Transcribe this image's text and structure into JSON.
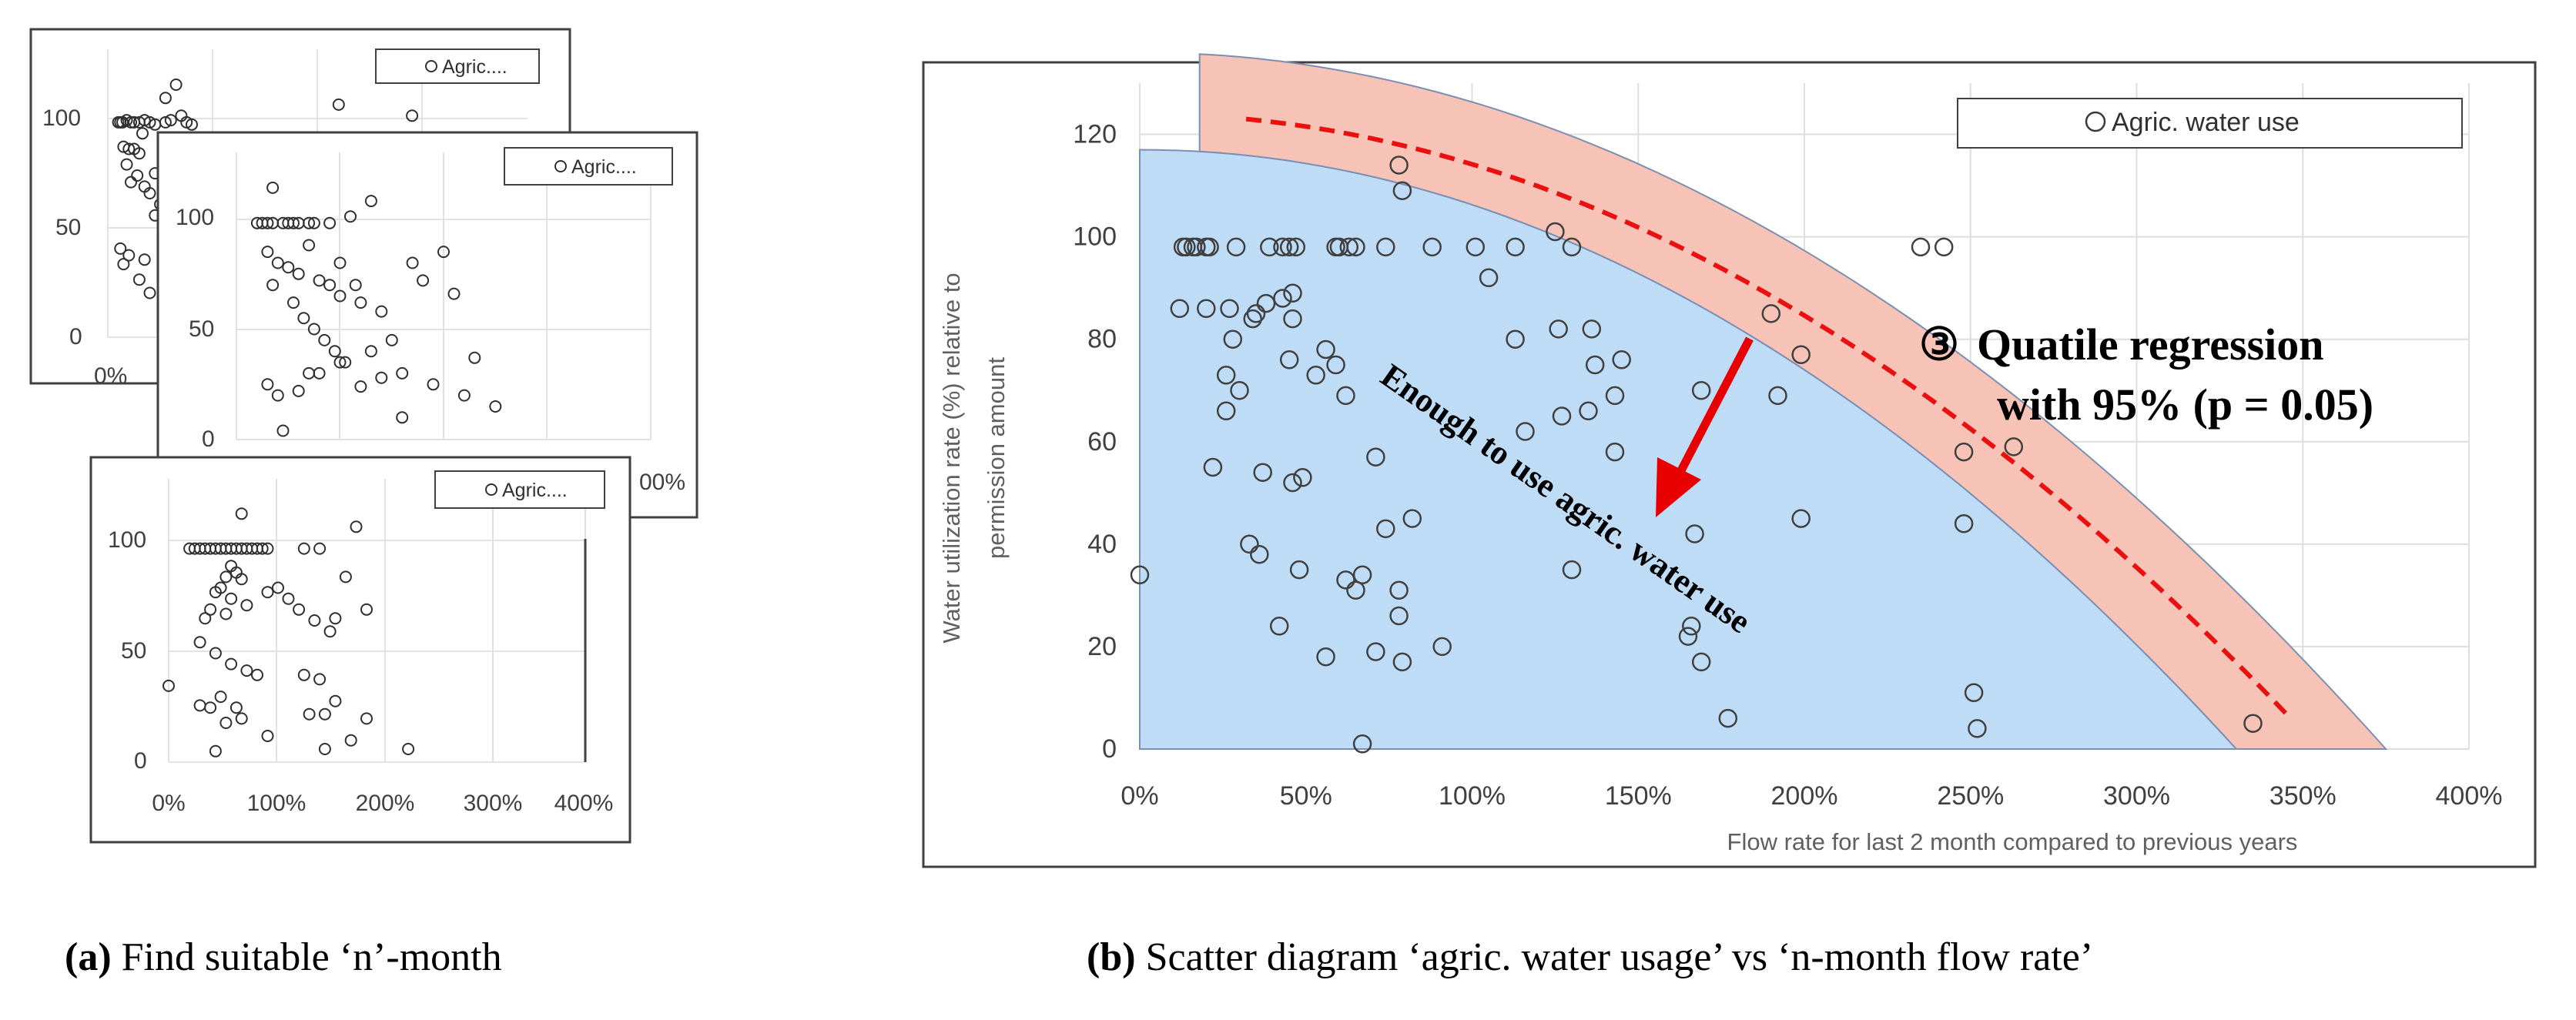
{
  "chart_data": [
    {
      "type": "scatter",
      "panel": "a-1",
      "legend": "Agric....",
      "ylim": [
        0,
        130
      ],
      "xlim": [
        0,
        4
      ],
      "yticks": [
        "0",
        "50",
        "100"
      ],
      "xticks": [
        "0%"
      ],
      "points": [
        [
          0.1,
          97
        ],
        [
          0.12,
          97
        ],
        [
          0.14,
          97
        ],
        [
          0.18,
          98
        ],
        [
          0.22,
          97
        ],
        [
          0.25,
          97
        ],
        [
          0.3,
          97
        ],
        [
          0.35,
          98
        ],
        [
          0.4,
          97
        ],
        [
          0.45,
          96
        ],
        [
          0.55,
          97
        ],
        [
          0.6,
          98
        ],
        [
          0.7,
          100
        ],
        [
          0.75,
          97
        ],
        [
          0.8,
          96
        ],
        [
          0.15,
          86
        ],
        [
          0.2,
          85
        ],
        [
          0.25,
          85
        ],
        [
          0.3,
          83
        ],
        [
          0.18,
          78
        ],
        [
          0.28,
          73
        ],
        [
          0.35,
          68
        ],
        [
          0.4,
          65
        ],
        [
          0.22,
          70
        ],
        [
          0.45,
          74
        ],
        [
          0.33,
          92
        ],
        [
          0.55,
          108
        ],
        [
          0.65,
          114
        ],
        [
          0.12,
          40
        ],
        [
          0.2,
          37
        ],
        [
          0.35,
          35
        ],
        [
          0.3,
          26
        ],
        [
          0.4,
          20
        ],
        [
          0.15,
          33
        ],
        [
          0.45,
          55
        ],
        [
          0.5,
          60
        ],
        [
          2.2,
          105
        ],
        [
          2.9,
          100
        ]
      ]
    },
    {
      "type": "scatter",
      "panel": "a-2",
      "legend": "Agric....",
      "ylim": [
        0,
        130
      ],
      "xlim": [
        0,
        4
      ],
      "yticks": [
        "0",
        "50",
        "100"
      ],
      "xticks": [
        "00%"
      ],
      "points": [
        [
          0.2,
          98
        ],
        [
          0.25,
          98
        ],
        [
          0.3,
          98
        ],
        [
          0.35,
          98
        ],
        [
          0.45,
          98
        ],
        [
          0.5,
          98
        ],
        [
          0.55,
          98
        ],
        [
          0.6,
          98
        ],
        [
          0.7,
          98
        ],
        [
          0.75,
          98
        ],
        [
          0.9,
          98
        ],
        [
          1.1,
          101
        ],
        [
          1.3,
          108
        ],
        [
          0.35,
          114
        ],
        [
          0.3,
          85
        ],
        [
          0.4,
          80
        ],
        [
          0.5,
          78
        ],
        [
          0.6,
          75
        ],
        [
          0.7,
          88
        ],
        [
          0.8,
          72
        ],
        [
          0.9,
          70
        ],
        [
          1.0,
          65
        ],
        [
          1.2,
          62
        ],
        [
          1.4,
          58
        ],
        [
          0.35,
          70
        ],
        [
          0.55,
          62
        ],
        [
          0.65,
          55
        ],
        [
          0.75,
          50
        ],
        [
          0.85,
          45
        ],
        [
          0.95,
          40
        ],
        [
          1.05,
          35
        ],
        [
          1.3,
          40
        ],
        [
          1.5,
          45
        ],
        [
          1.7,
          80
        ],
        [
          1.8,
          72
        ],
        [
          2.0,
          85
        ],
        [
          2.1,
          66
        ],
        [
          1.6,
          30
        ],
        [
          1.9,
          25
        ],
        [
          2.3,
          37
        ],
        [
          2.5,
          15
        ],
        [
          0.3,
          25
        ],
        [
          0.4,
          20
        ],
        [
          0.6,
          22
        ],
        [
          0.8,
          30
        ],
        [
          1.0,
          35
        ],
        [
          1.2,
          24
        ],
        [
          1.4,
          28
        ],
        [
          1.6,
          10
        ],
        [
          0.45,
          4
        ],
        [
          2.2,
          20
        ],
        [
          1.0,
          80
        ],
        [
          1.15,
          70
        ],
        [
          0.7,
          30
        ]
      ]
    },
    {
      "type": "scatter",
      "panel": "a-3",
      "legend": "Agric....",
      "ylim": [
        0,
        130
      ],
      "xlim": [
        0,
        4
      ],
      "yticks": [
        "0",
        "50",
        "100"
      ],
      "xticks": [
        "0%",
        "100%",
        "200%",
        "300%",
        "400%"
      ],
      "points": [
        [
          0.2,
          98
        ],
        [
          0.25,
          98
        ],
        [
          0.3,
          98
        ],
        [
          0.35,
          98
        ],
        [
          0.4,
          98
        ],
        [
          0.45,
          98
        ],
        [
          0.5,
          98
        ],
        [
          0.55,
          98
        ],
        [
          0.6,
          98
        ],
        [
          0.65,
          98
        ],
        [
          0.7,
          98
        ],
        [
          0.75,
          98
        ],
        [
          0.8,
          98
        ],
        [
          0.85,
          98
        ],
        [
          0.9,
          98
        ],
        [
          0.95,
          98
        ],
        [
          1.3,
          98
        ],
        [
          1.45,
          98
        ],
        [
          0.7,
          114
        ],
        [
          0.6,
          90
        ],
        [
          0.65,
          87
        ],
        [
          0.55,
          85
        ],
        [
          0.7,
          84
        ],
        [
          0.5,
          80
        ],
        [
          0.45,
          78
        ],
        [
          0.6,
          75
        ],
        [
          0.75,
          72
        ],
        [
          0.4,
          70
        ],
        [
          0.55,
          68
        ],
        [
          0.35,
          66
        ],
        [
          0.95,
          78
        ],
        [
          1.05,
          80
        ],
        [
          1.15,
          75
        ],
        [
          1.25,
          70
        ],
        [
          1.4,
          65
        ],
        [
          1.55,
          60
        ],
        [
          1.6,
          66
        ],
        [
          1.7,
          85
        ],
        [
          1.8,
          108
        ],
        [
          1.9,
          70
        ],
        [
          0.3,
          55
        ],
        [
          0.45,
          50
        ],
        [
          0.6,
          45
        ],
        [
          0.75,
          42
        ],
        [
          0.85,
          40
        ],
        [
          1.3,
          40
        ],
        [
          1.45,
          38
        ],
        [
          0.5,
          30
        ],
        [
          0.65,
          25
        ],
        [
          0.7,
          20
        ],
        [
          0.4,
          25
        ],
        [
          0.55,
          18
        ],
        [
          1.35,
          22
        ],
        [
          1.5,
          22
        ],
        [
          1.6,
          28
        ],
        [
          1.9,
          20
        ],
        [
          1.75,
          10
        ],
        [
          0.95,
          12
        ],
        [
          0.45,
          5
        ],
        [
          1.5,
          6
        ],
        [
          2.3,
          6
        ],
        [
          0.0,
          35
        ],
        [
          0.3,
          26
        ]
      ]
    },
    {
      "type": "scatter",
      "panel": "b",
      "legend": "Agric. water use",
      "xlabel": "Flow rate for last 2 month compared to previous years",
      "ylabel_line1": "Water utilization rate (%)  relative to",
      "ylabel_line2": "permission amount",
      "xlim": [
        0,
        4
      ],
      "ylim": [
        0,
        130
      ],
      "xticks": [
        "0%",
        "50%",
        "100%",
        "150%",
        "200%",
        "250%",
        "300%",
        "350%",
        "400%"
      ],
      "yticks": [
        "0",
        "20",
        "40",
        "60",
        "80",
        "100",
        "120"
      ],
      "annotations": {
        "regression_circle": "③",
        "regression_line1": "Quatile regression",
        "regression_line2": "with 95% (p = 0.05)",
        "enough_text": "Enough to use agric. water use"
      },
      "regression_curve": {
        "x_start": 0.32,
        "x_end": 3.45,
        "y_at_x0": 124,
        "y_at_x_end": 5
      },
      "band": {
        "outer_top_at_x0": 136,
        "outer_root_x": 3.75,
        "inner_top_at_x0": 117,
        "inner_root_x": 3.3
      },
      "points": [
        [
          0.0,
          34
        ],
        [
          0.13,
          98
        ],
        [
          0.14,
          98
        ],
        [
          0.16,
          98
        ],
        [
          0.17,
          98
        ],
        [
          0.2,
          98
        ],
        [
          0.21,
          98
        ],
        [
          0.29,
          98
        ],
        [
          0.39,
          98
        ],
        [
          0.43,
          98
        ],
        [
          0.45,
          98
        ],
        [
          0.47,
          98
        ],
        [
          0.59,
          98
        ],
        [
          0.6,
          98
        ],
        [
          0.63,
          98
        ],
        [
          0.65,
          98
        ],
        [
          0.74,
          98
        ],
        [
          0.88,
          98
        ],
        [
          1.01,
          98
        ],
        [
          1.13,
          98
        ],
        [
          0.12,
          86
        ],
        [
          0.2,
          86
        ],
        [
          0.27,
          86
        ],
        [
          0.35,
          85
        ],
        [
          0.38,
          87
        ],
        [
          0.43,
          88
        ],
        [
          0.46,
          89
        ],
        [
          0.34,
          84
        ],
        [
          0.46,
          84
        ],
        [
          0.28,
          80
        ],
        [
          0.45,
          76
        ],
        [
          0.26,
          73
        ],
        [
          0.3,
          70
        ],
        [
          0.53,
          73
        ],
        [
          0.56,
          78
        ],
        [
          0.59,
          75
        ],
        [
          0.62,
          69
        ],
        [
          0.22,
          55
        ],
        [
          0.37,
          54
        ],
        [
          0.49,
          53
        ],
        [
          0.26,
          66
        ],
        [
          0.33,
          40
        ],
        [
          0.36,
          38
        ],
        [
          0.48,
          35
        ],
        [
          0.46,
          52
        ],
        [
          0.42,
          24
        ],
        [
          0.56,
          18
        ],
        [
          0.62,
          33
        ],
        [
          0.65,
          31
        ],
        [
          0.67,
          34
        ],
        [
          0.71,
          57
        ],
        [
          0.74,
          43
        ],
        [
          0.78,
          31
        ],
        [
          0.78,
          26
        ],
        [
          0.79,
          17
        ],
        [
          0.82,
          45
        ],
        [
          0.71,
          19
        ],
        [
          0.91,
          20
        ],
        [
          0.67,
          1
        ],
        [
          0.78,
          114
        ],
        [
          0.79,
          109
        ],
        [
          1.05,
          92
        ],
        [
          1.13,
          80
        ],
        [
          1.16,
          62
        ],
        [
          1.25,
          101
        ],
        [
          1.3,
          98
        ],
        [
          1.26,
          82
        ],
        [
          1.27,
          65
        ],
        [
          1.3,
          35
        ],
        [
          1.36,
          82
        ],
        [
          1.35,
          66
        ],
        [
          1.37,
          75
        ],
        [
          1.43,
          58
        ],
        [
          1.43,
          69
        ],
        [
          1.45,
          76
        ],
        [
          1.67,
          42
        ],
        [
          1.69,
          70
        ],
        [
          1.66,
          24
        ],
        [
          1.65,
          22
        ],
        [
          1.69,
          17
        ],
        [
          1.77,
          6
        ],
        [
          1.9,
          85
        ],
        [
          1.92,
          69
        ],
        [
          1.99,
          77
        ],
        [
          1.99,
          45
        ],
        [
          2.35,
          98
        ],
        [
          2.42,
          98
        ],
        [
          2.48,
          58
        ],
        [
          2.48,
          44
        ],
        [
          2.51,
          11
        ],
        [
          2.52,
          4
        ],
        [
          2.63,
          59
        ],
        [
          3.35,
          5
        ]
      ]
    }
  ],
  "captions": {
    "a_label": "(a)",
    "a_text": " Find suitable ‘n’-month",
    "b_label": "(b)",
    "b_text": " Scatter diagram ‘agric. water usage’ vs ‘n-month flow rate’"
  }
}
